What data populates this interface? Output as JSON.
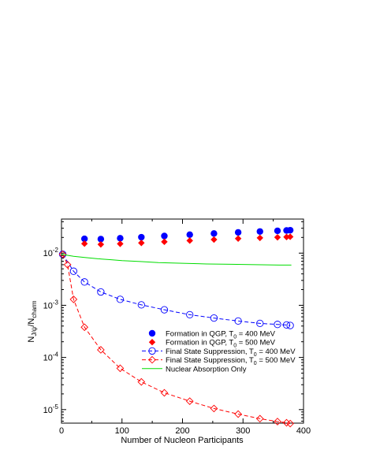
{
  "chart_data": {
    "type": "scatter",
    "title": "",
    "xlabel": "Number of Nucleon Participants",
    "ylabel": {
      "main": "N",
      "sub1": "J/ψ",
      "mid": "/N",
      "sub2": "charm"
    },
    "x_ticks": [
      "0",
      "100",
      "200",
      "300",
      "400"
    ],
    "y_ticks": [
      {
        "base": "10",
        "exp": "-2",
        "value": 0.01
      },
      {
        "base": "10",
        "exp": "-3",
        "value": 0.001
      },
      {
        "base": "10",
        "exp": "-4",
        "value": 0.0001
      },
      {
        "base": "10",
        "exp": "-5",
        "value": 1e-05
      }
    ],
    "xlim": [
      0,
      400
    ],
    "ylim": [
      5.5e-06,
      0.045
    ],
    "y_scale": "log",
    "grid": false,
    "legend_position": "lower-right",
    "series": [
      {
        "name": {
          "text": "Formation in QGP, T",
          "sub": "0",
          "rest": " = 400 MeV"
        },
        "style": "filled-circle",
        "color": "#0000ff",
        "x": [
          38,
          65,
          97,
          132,
          170,
          212,
          252,
          292,
          328,
          357,
          372,
          378
        ],
        "y": [
          0.0188,
          0.0186,
          0.0193,
          0.0202,
          0.0213,
          0.0226,
          0.0238,
          0.025,
          0.026,
          0.0268,
          0.0272,
          0.0275
        ]
      },
      {
        "name": {
          "text": "Formation in QGP, T",
          "sub": "0",
          "rest": " = 500 MeV"
        },
        "style": "filled-diamond",
        "color": "#ff0000",
        "x": [
          38,
          65,
          97,
          132,
          170,
          212,
          252,
          292,
          328,
          357,
          372,
          378
        ],
        "y": [
          0.0152,
          0.0147,
          0.0151,
          0.0157,
          0.0165,
          0.0174,
          0.0182,
          0.019,
          0.0196,
          0.0201,
          0.0204,
          0.0206
        ]
      },
      {
        "name": {
          "text": "Final State Suppression, T",
          "sub": "0",
          "rest": " = 400 MeV"
        },
        "style": "open-circle-dashed",
        "color": "#0000ff",
        "x": [
          2,
          20,
          38,
          65,
          97,
          132,
          170,
          212,
          252,
          292,
          328,
          357,
          372,
          378
        ],
        "y": [
          0.0095,
          0.0045,
          0.0028,
          0.0018,
          0.0013,
          0.00102,
          0.00082,
          0.00066,
          0.00057,
          0.0005,
          0.00045,
          0.00043,
          0.00042,
          0.00041
        ]
      },
      {
        "name": {
          "text": "Final State Suppression, T",
          "sub": "0",
          "rest": " = 500 MeV"
        },
        "style": "open-diamond-dashed",
        "color": "#ff0000",
        "x": [
          2,
          10,
          20,
          38,
          65,
          97,
          132,
          170,
          212,
          252,
          292,
          328,
          357,
          372,
          378
        ],
        "y": [
          0.0095,
          0.006,
          0.0013,
          0.00038,
          0.00014,
          6.2e-05,
          3.4e-05,
          2.1e-05,
          1.45e-05,
          1.05e-05,
          8.2e-06,
          6.7e-06,
          5.9e-06,
          5.6e-06,
          5.4e-06
        ]
      },
      {
        "name": {
          "text": "Nuclear Absorption Only",
          "sub": "",
          "rest": ""
        },
        "style": "solid-line",
        "color": "#00dd00",
        "x": [
          0,
          20,
          40,
          60,
          80,
          100,
          130,
          160,
          200,
          240,
          280,
          320,
          360,
          380
        ],
        "y": [
          0.0095,
          0.0087,
          0.0082,
          0.0078,
          0.0075,
          0.0072,
          0.0069,
          0.0066,
          0.0064,
          0.0062,
          0.0061,
          0.006,
          0.0059,
          0.0059
        ]
      }
    ]
  }
}
